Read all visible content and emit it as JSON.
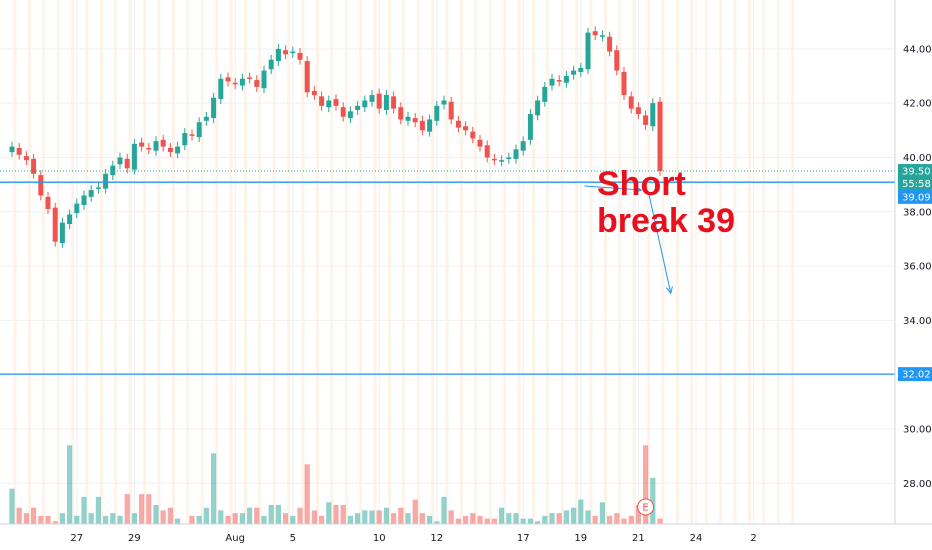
{
  "chart_data": {
    "type": "candlestick",
    "price_axis": {
      "ticks": [
        "44.00",
        "42.00",
        "40.00",
        "38.00",
        "36.00",
        "34.00",
        "32.00",
        "30.00",
        "28.00"
      ],
      "ylim": [
        26.5,
        45.8
      ]
    },
    "time_axis": {
      "ticks": [
        {
          "label": "27",
          "bar": 9
        },
        {
          "label": "29",
          "bar": 17
        },
        {
          "label": "Aug",
          "bar": 31
        },
        {
          "label": "5",
          "bar": 39
        },
        {
          "label": "10",
          "bar": 51
        },
        {
          "label": "12",
          "bar": 59
        },
        {
          "label": "17",
          "bar": 71
        },
        {
          "label": "19",
          "bar": 79
        },
        {
          "label": "21",
          "bar": 87
        },
        {
          "label": "24",
          "bar": 95
        },
        {
          "label": "2",
          "bar": 103
        }
      ]
    },
    "price_tags": [
      {
        "label": "39.50",
        "value": 39.5,
        "color": "#26a69a"
      },
      {
        "label": "55:58",
        "value": 39.05,
        "color": "#26a69a"
      },
      {
        "label": "39.09",
        "value": 38.55,
        "color": "#2196f3"
      },
      {
        "label": "32.02",
        "value": 32.02,
        "color": "#2196f3"
      }
    ],
    "hlines": [
      {
        "value": 39.09,
        "color": "#2196f3"
      },
      {
        "value": 32.02,
        "color": "#2196f3"
      }
    ],
    "dotted_line": {
      "value": 39.5,
      "color": "#26a69a"
    },
    "annotation": {
      "line1": "Short",
      "line2": "break 39"
    },
    "arrows": [
      {
        "from": [
          79.5,
          38.95
        ],
        "to": [
          87.4,
          38.8
        ]
      },
      {
        "from": [
          88.5,
          38.6
        ],
        "to": [
          91.5,
          35.0
        ]
      }
    ],
    "earnings_marker": {
      "label": "E",
      "bar": 88
    },
    "up_color": "#26a69a",
    "down_color": "#ef5350",
    "close": [
      40.4,
      40.1,
      39.9,
      39.4,
      38.6,
      38.1,
      36.9,
      37.6,
      37.9,
      38.3,
      38.6,
      38.8,
      38.9,
      39.4,
      39.7,
      40.0,
      39.6,
      40.5,
      40.4,
      40.3,
      40.6,
      40.4,
      40.2,
      40.4,
      40.9,
      40.8,
      41.3,
      41.5,
      42.2,
      42.9,
      42.8,
      42.7,
      42.9,
      42.9,
      42.6,
      43.2,
      43.6,
      44.0,
      43.8,
      43.9,
      43.6,
      42.4,
      42.3,
      41.9,
      42.1,
      41.9,
      41.5,
      41.7,
      41.9,
      42.1,
      42.3,
      41.8,
      42.3,
      41.8,
      41.4,
      41.5,
      41.3,
      41.0,
      41.4,
      41.9,
      42.1,
      41.4,
      41.1,
      41.0,
      40.7,
      40.4,
      40.0,
      39.9,
      39.9,
      40.0,
      40.3,
      40.6,
      41.6,
      42.1,
      42.6,
      42.9,
      42.8,
      43.0,
      43.2,
      43.3,
      44.6,
      44.5,
      44.5,
      43.9,
      43.2,
      42.3,
      41.8,
      41.6,
      41.2,
      42.0,
      39.5
    ],
    "volume": [
      27.8,
      27.1,
      26.9,
      27.1,
      26.8,
      26.8,
      26.6,
      26.9,
      29.4,
      26.8,
      27.5,
      26.9,
      27.5,
      26.8,
      26.9,
      26.8,
      27.6,
      26.9,
      27.6,
      27.6,
      27.2,
      27.0,
      27.1,
      26.7,
      26.5,
      26.8,
      26.8,
      27.1,
      29.1,
      27.0,
      26.8,
      26.9,
      26.9,
      27.1,
      27.1,
      26.8,
      27.2,
      27.2,
      26.9,
      26.8,
      27.1,
      28.7,
      27.0,
      26.8,
      27.3,
      27.2,
      27.2,
      26.8,
      26.9,
      27.0,
      27.0,
      27.0,
      27.1,
      26.9,
      27.1,
      26.9,
      27.4,
      26.9,
      26.8,
      26.6,
      27.5,
      27.0,
      26.7,
      26.8,
      26.9,
      26.8,
      26.7,
      26.7,
      27.1,
      26.9,
      26.9,
      26.7,
      26.7,
      26.6,
      26.8,
      26.9,
      26.9,
      27.0,
      27.1,
      27.4,
      27.0,
      26.8,
      27.3,
      26.8,
      26.9,
      26.7,
      26.8,
      27.2,
      29.4,
      28.2,
      26.7
    ]
  }
}
